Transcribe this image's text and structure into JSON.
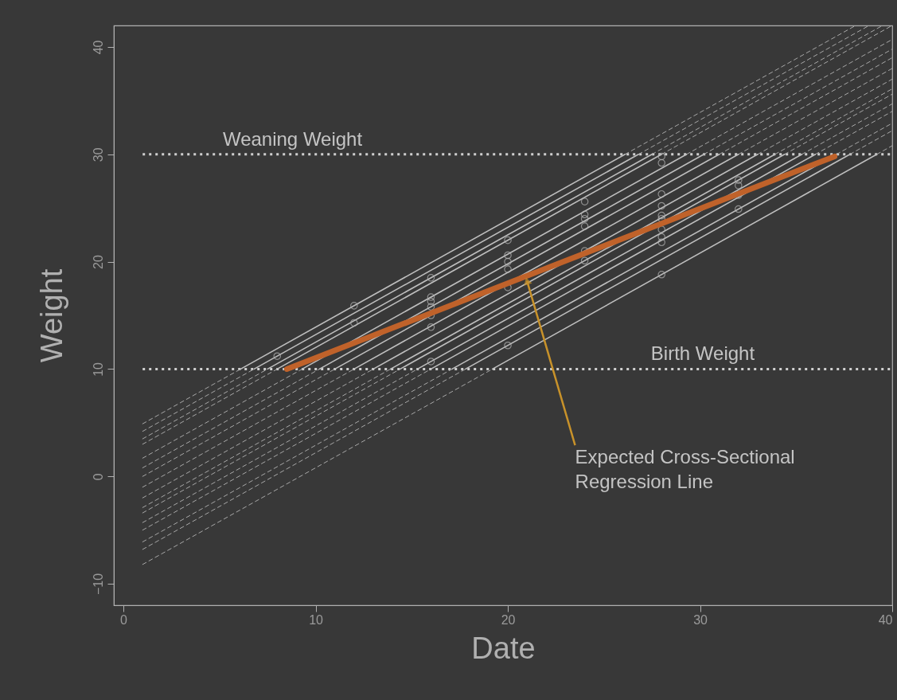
{
  "chart_data": {
    "type": "line",
    "xlabel": "Date",
    "ylabel": "Weight",
    "xlim": [
      -0.5,
      40
    ],
    "ylim": [
      -12,
      42
    ],
    "xticks": [
      0,
      10,
      20,
      30,
      40
    ],
    "yticks": [
      -10,
      0,
      10,
      20,
      30,
      40
    ],
    "ref_lines": [
      {
        "axis": "y",
        "value": 30,
        "label": "Weaning Weight",
        "color": "#d0d0d0",
        "line_style": "dotted"
      },
      {
        "axis": "y",
        "value": 10,
        "label": "Birth Weight",
        "color": "#d0d0d0",
        "line_style": "dotted"
      }
    ],
    "annotations": [
      {
        "text": "Expected Cross-Sectional\nRegression Line",
        "x": 21,
        "y": 18.2
      }
    ],
    "series": [
      {
        "line_style": "dashed",
        "color": "#a8a8a8",
        "x": [
          1,
          6.1,
          16.1,
          26.1,
          38.1
        ],
        "values": [
          4.9,
          10,
          null,
          30,
          42
        ]
      },
      {
        "line_style": "dashed",
        "color": "#a8a8a8",
        "x": [
          1,
          6.8,
          16.8,
          26.8,
          38.8
        ],
        "values": [
          4.2,
          10,
          null,
          30,
          42
        ]
      },
      {
        "line_style": "dashed",
        "color": "#a8a8a8",
        "x": [
          1,
          7.5,
          17.5,
          27.5,
          39.5
        ],
        "values": [
          3.5,
          10,
          null,
          30,
          42
        ]
      },
      {
        "line_style": "dashed",
        "color": "#a8a8a8",
        "x": [
          1,
          8,
          18,
          28,
          40
        ],
        "values": [
          3,
          10,
          null,
          30,
          42
        ]
      },
      {
        "line_style": "dashed",
        "color": "#a8a8a8",
        "x": [
          1,
          9.3,
          19.3,
          29.3,
          40
        ],
        "values": [
          1.7,
          10,
          null,
          30,
          40.7
        ]
      },
      {
        "line_style": "dashed",
        "color": "#a8a8a8",
        "x": [
          1,
          10.2,
          20.2,
          30.2,
          40
        ],
        "values": [
          0.8,
          10,
          null,
          30,
          39.8
        ]
      },
      {
        "line_style": "dashed",
        "color": "#a8a8a8",
        "x": [
          1,
          11,
          21,
          31,
          40
        ],
        "values": [
          0,
          10,
          null,
          30,
          39
        ]
      },
      {
        "line_style": "dashed",
        "color": "#a8a8a8",
        "x": [
          1,
          12,
          22,
          32,
          40
        ],
        "values": [
          -1,
          10,
          null,
          30,
          38
        ]
      },
      {
        "line_style": "dashed",
        "color": "#a8a8a8",
        "x": [
          1,
          13,
          23,
          33,
          40
        ],
        "values": [
          -2,
          10,
          null,
          30,
          37
        ]
      },
      {
        "line_style": "dashed",
        "color": "#a8a8a8",
        "x": [
          1,
          13.9,
          23.9,
          33.9,
          40
        ],
        "values": [
          -2.9,
          10,
          null,
          30,
          36.1
        ]
      },
      {
        "line_style": "dashed",
        "color": "#a8a8a8",
        "x": [
          1,
          14.4,
          24.4,
          34.4,
          40
        ],
        "values": [
          -3.4,
          10,
          null,
          30,
          35.6
        ]
      },
      {
        "line_style": "dashed",
        "color": "#a8a8a8",
        "x": [
          1,
          15.3,
          25.3,
          35.3,
          40
        ],
        "values": [
          -4.3,
          10,
          null,
          30,
          34.7
        ]
      },
      {
        "line_style": "dashed",
        "color": "#a8a8a8",
        "x": [
          1,
          16,
          26,
          36,
          40
        ],
        "values": [
          -5,
          10,
          null,
          30,
          34
        ]
      },
      {
        "line_style": "dashed",
        "color": "#a8a8a8",
        "x": [
          1,
          17.1,
          27.1,
          37.1,
          40
        ],
        "values": [
          -6.1,
          10,
          null,
          30,
          32.9
        ]
      },
      {
        "line_style": "dashed",
        "color": "#a8a8a8",
        "x": [
          1,
          17.8,
          27.8,
          37.8,
          40
        ],
        "values": [
          -6.8,
          10,
          null,
          30,
          32.2
        ]
      },
      {
        "line_style": "dashed",
        "color": "#a8a8a8",
        "x": [
          1,
          19.2,
          29.2,
          39.2,
          40
        ],
        "values": [
          -8.2,
          10,
          null,
          30,
          30.8
        ]
      },
      {
        "line_style": "solid",
        "color": "#bebebe",
        "x": [
          6.1,
          26.1
        ],
        "values": [
          10,
          30
        ]
      },
      {
        "line_style": "solid",
        "color": "#bebebe",
        "x": [
          6.8,
          26.8
        ],
        "values": [
          10,
          30
        ]
      },
      {
        "line_style": "solid",
        "color": "#bebebe",
        "x": [
          7.5,
          27.5
        ],
        "values": [
          10,
          30
        ]
      },
      {
        "line_style": "solid",
        "color": "#bebebe",
        "x": [
          8,
          28
        ],
        "values": [
          10,
          30
        ]
      },
      {
        "line_style": "solid",
        "color": "#bebebe",
        "x": [
          9.3,
          29.3
        ],
        "values": [
          10,
          30
        ]
      },
      {
        "line_style": "solid",
        "color": "#bebebe",
        "x": [
          10.2,
          30.2
        ],
        "values": [
          10,
          30
        ]
      },
      {
        "line_style": "solid",
        "color": "#bebebe",
        "x": [
          11,
          31
        ],
        "values": [
          10,
          30
        ]
      },
      {
        "line_style": "solid",
        "color": "#bebebe",
        "x": [
          12,
          32
        ],
        "values": [
          10,
          30
        ]
      },
      {
        "line_style": "solid",
        "color": "#bebebe",
        "x": [
          13,
          33
        ],
        "values": [
          10,
          30
        ]
      },
      {
        "line_style": "solid",
        "color": "#bebebe",
        "x": [
          13.9,
          33.9
        ],
        "values": [
          10,
          30
        ]
      },
      {
        "line_style": "solid",
        "color": "#bebebe",
        "x": [
          14.4,
          34.4
        ],
        "values": [
          10,
          30
        ]
      },
      {
        "line_style": "solid",
        "color": "#bebebe",
        "x": [
          15.3,
          35.3
        ],
        "values": [
          10,
          30
        ]
      },
      {
        "line_style": "solid",
        "color": "#bebebe",
        "x": [
          16,
          36
        ],
        "values": [
          10,
          30
        ]
      },
      {
        "line_style": "solid",
        "color": "#bebebe",
        "x": [
          17.1,
          37.1
        ],
        "values": [
          10,
          30
        ]
      },
      {
        "line_style": "solid",
        "color": "#bebebe",
        "x": [
          17.8,
          37.8
        ],
        "values": [
          10,
          30
        ]
      },
      {
        "line_style": "solid",
        "color": "#bebebe",
        "x": [
          19.2,
          39.2
        ],
        "values": [
          10,
          30
        ]
      },
      {
        "type": "scatter",
        "marker": "circle",
        "color": "#b4b4b4",
        "x": [
          8,
          12,
          12,
          16,
          16,
          16,
          16,
          16,
          16,
          16,
          20,
          20,
          20,
          20,
          20,
          20,
          24,
          24,
          24,
          24,
          24,
          24,
          28,
          28,
          28,
          28,
          28,
          28,
          28,
          28,
          28,
          28,
          32,
          32,
          32,
          32
        ],
        "values": [
          11.2,
          15.9,
          14.3,
          18.5,
          16.7,
          16.3,
          15.8,
          15.0,
          13.9,
          10.7,
          22.0,
          20.6,
          20.0,
          19.3,
          17.6,
          12.2,
          25.6,
          24.4,
          24.0,
          23.3,
          21.0,
          20.1,
          29.8,
          29.2,
          26.3,
          25.2,
          24.3,
          24.0,
          23.0,
          22.3,
          21.8,
          18.8,
          27.6,
          27.1,
          26.2,
          24.9
        ]
      },
      {
        "line_style": "solid",
        "color": "#c0622a",
        "x": [
          8.5,
          37
        ],
        "values": [
          10,
          29.8
        ]
      }
    ]
  }
}
